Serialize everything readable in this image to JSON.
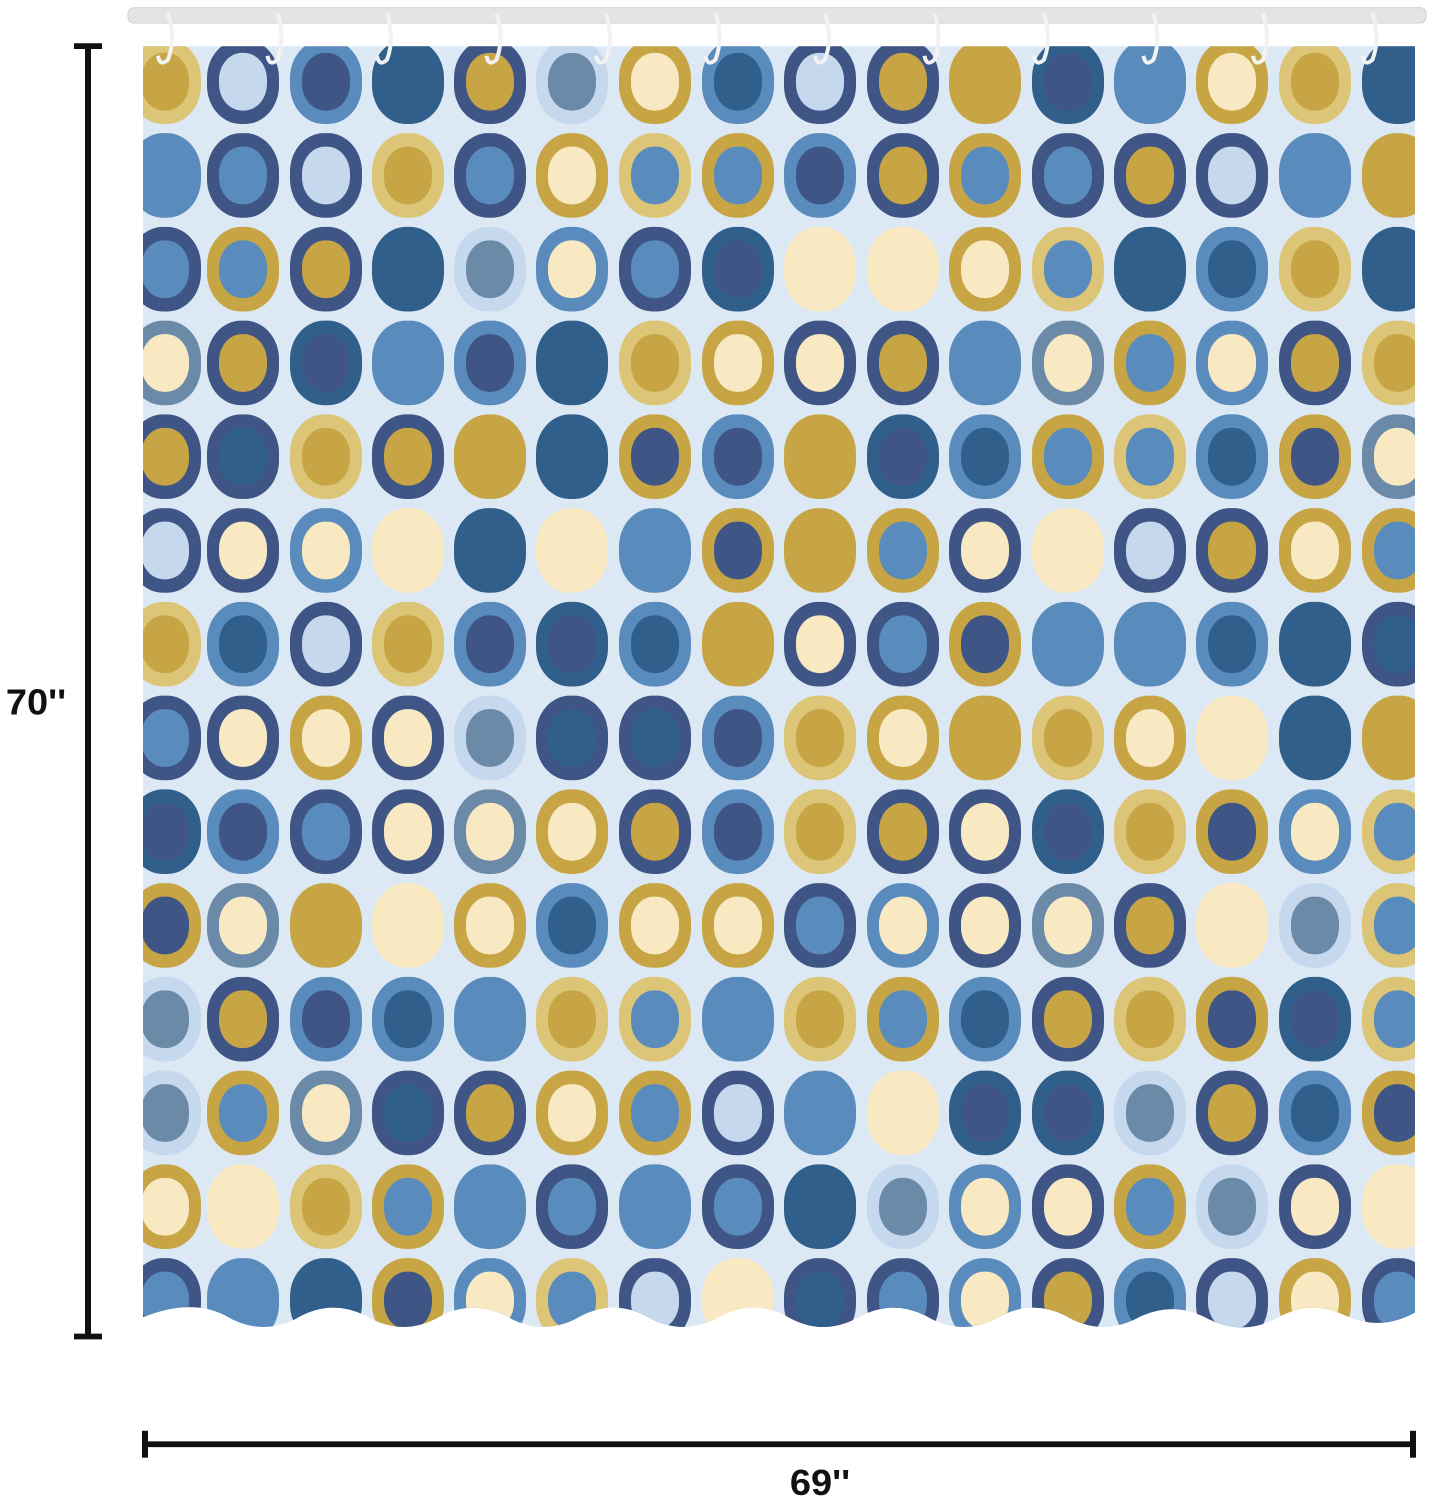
{
  "dimensions": {
    "height": "70''",
    "width": "69''"
  }
}
